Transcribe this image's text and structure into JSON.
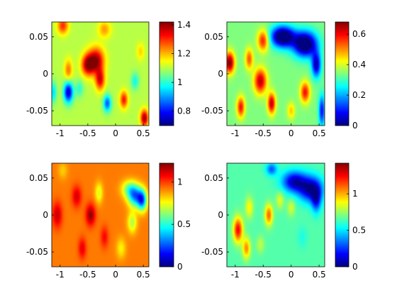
{
  "figure": {
    "background": "#ffffff"
  },
  "chart_data": [
    {
      "type": "heatmap",
      "colormap": "jet",
      "x_ticks": [
        "-1",
        "-0.5",
        "0",
        "0.5"
      ],
      "x_tick_values": [
        -1,
        -0.5,
        0,
        0.5
      ],
      "xlim": [
        -1.15,
        0.6
      ],
      "y_ticks": [
        "0.05",
        "0",
        "-0.05"
      ],
      "y_tick_values": [
        0.05,
        0,
        -0.05
      ],
      "ylim": [
        -0.07,
        0.07
      ],
      "colorbar_ticks": [
        "1.4",
        "1.2",
        "1",
        "0.8"
      ],
      "colorbar_tick_values": [
        1.4,
        1.2,
        1.0,
        0.8
      ],
      "clim": [
        0.7,
        1.42
      ],
      "base": 1.1,
      "blobs": [
        {
          "x": -0.35,
          "y": 0.018,
          "sx": 0.1,
          "sy": 0.012,
          "v": 0.3
        },
        {
          "x": -0.5,
          "y": 0.012,
          "sx": 0.08,
          "sy": 0.01,
          "v": 0.28
        },
        {
          "x": -0.28,
          "y": -0.008,
          "sx": 0.06,
          "sy": 0.01,
          "v": 0.25
        },
        {
          "x": -0.95,
          "y": 0.065,
          "sx": 0.07,
          "sy": 0.008,
          "v": 0.2
        },
        {
          "x": 0.52,
          "y": -0.06,
          "sx": 0.05,
          "sy": 0.008,
          "v": 0.3
        },
        {
          "x": 0.15,
          "y": -0.035,
          "sx": 0.05,
          "sy": 0.008,
          "v": 0.22
        },
        {
          "x": -0.85,
          "y": 0.005,
          "sx": 0.05,
          "sy": 0.01,
          "v": 0.15
        },
        {
          "x": -0.2,
          "y": 0.06,
          "sx": 0.08,
          "sy": 0.008,
          "v": 0.12
        },
        {
          "x": -0.85,
          "y": -0.025,
          "sx": 0.06,
          "sy": 0.01,
          "v": -0.35
        },
        {
          "x": -0.15,
          "y": -0.04,
          "sx": 0.05,
          "sy": 0.008,
          "v": -0.25
        },
        {
          "x": 0.35,
          "y": -0.01,
          "sx": 0.05,
          "sy": 0.008,
          "v": -0.12
        },
        {
          "x": -1.12,
          "y": -0.025,
          "sx": 0.04,
          "sy": 0.01,
          "v": -0.15
        },
        {
          "x": -0.65,
          "y": -0.02,
          "sx": 0.05,
          "sy": 0.008,
          "v": -0.1
        },
        {
          "x": 0.45,
          "y": 0.03,
          "sx": 0.05,
          "sy": 0.008,
          "v": 0.08
        }
      ]
    },
    {
      "type": "heatmap",
      "colormap": "jet",
      "x_ticks": [
        "-1",
        "-0.5",
        "0",
        "0.5"
      ],
      "x_tick_values": [
        -1,
        -0.5,
        0,
        0.5
      ],
      "xlim": [
        -1.15,
        0.6
      ],
      "y_ticks": [
        "0.05",
        "0",
        "-0.05"
      ],
      "y_tick_values": [
        0.05,
        0,
        -0.05
      ],
      "ylim": [
        -0.07,
        0.07
      ],
      "colorbar_ticks": [
        "0.6",
        "0.4",
        "0.2",
        "0"
      ],
      "colorbar_tick_values": [
        0.6,
        0.4,
        0.2,
        0
      ],
      "clim": [
        0,
        0.68
      ],
      "base": 0.34,
      "blobs": [
        {
          "x": -0.15,
          "y": 0.05,
          "sx": 0.15,
          "sy": 0.01,
          "v": -0.42
        },
        {
          "x": 0.25,
          "y": 0.04,
          "sx": 0.15,
          "sy": 0.012,
          "v": -0.42
        },
        {
          "x": 0.45,
          "y": 0.012,
          "sx": 0.06,
          "sy": 0.012,
          "v": -0.3
        },
        {
          "x": 0.55,
          "y": -0.05,
          "sx": 0.04,
          "sy": 0.015,
          "v": -0.25
        },
        {
          "x": -1.1,
          "y": 0.015,
          "sx": 0.06,
          "sy": 0.01,
          "v": 0.35
        },
        {
          "x": -0.55,
          "y": -0.01,
          "sx": 0.08,
          "sy": 0.012,
          "v": 0.3
        },
        {
          "x": -0.5,
          "y": 0.045,
          "sx": 0.07,
          "sy": 0.01,
          "v": 0.25
        },
        {
          "x": -0.35,
          "y": -0.04,
          "sx": 0.05,
          "sy": 0.01,
          "v": 0.3
        },
        {
          "x": 0.25,
          "y": -0.025,
          "sx": 0.06,
          "sy": 0.01,
          "v": 0.25
        },
        {
          "x": -0.9,
          "y": -0.045,
          "sx": 0.05,
          "sy": 0.01,
          "v": 0.25
        },
        {
          "x": -0.75,
          "y": 0.02,
          "sx": 0.05,
          "sy": 0.01,
          "v": 0.2
        },
        {
          "x": 0.0,
          "y": -0.05,
          "sx": 0.05,
          "sy": 0.008,
          "v": 0.12
        }
      ]
    },
    {
      "type": "heatmap",
      "colormap": "jet",
      "x_ticks": [
        "-1",
        "-0.5",
        "0",
        "0.5"
      ],
      "x_tick_values": [
        -1,
        -0.5,
        0,
        0.5
      ],
      "xlim": [
        -1.15,
        0.6
      ],
      "y_ticks": [
        "0.05",
        "0",
        "-0.05"
      ],
      "y_tick_values": [
        0.05,
        0,
        -0.05
      ],
      "ylim": [
        -0.07,
        0.07
      ],
      "colorbar_ticks": [
        "1",
        "0.5",
        "0"
      ],
      "colorbar_tick_values": [
        1,
        0.5,
        0
      ],
      "clim": [
        0,
        1.22
      ],
      "base": 0.92,
      "blobs": [
        {
          "x": 0.35,
          "y": 0.025,
          "sx": 0.09,
          "sy": 0.01,
          "v": -0.55
        },
        {
          "x": 0.48,
          "y": 0.02,
          "sx": 0.06,
          "sy": 0.01,
          "v": -0.6
        },
        {
          "x": 0.25,
          "y": 0.035,
          "sx": 0.1,
          "sy": 0.008,
          "v": -0.3
        },
        {
          "x": -0.45,
          "y": 0.0,
          "sx": 0.06,
          "sy": 0.01,
          "v": 0.28
        },
        {
          "x": -0.7,
          "y": 0.025,
          "sx": 0.06,
          "sy": 0.01,
          "v": 0.2
        },
        {
          "x": -1.05,
          "y": 0.0,
          "sx": 0.06,
          "sy": 0.012,
          "v": 0.22
        },
        {
          "x": -0.2,
          "y": -0.03,
          "sx": 0.05,
          "sy": 0.01,
          "v": 0.15
        },
        {
          "x": 0.3,
          "y": -0.01,
          "sx": 0.06,
          "sy": 0.01,
          "v": -0.25
        },
        {
          "x": -0.3,
          "y": 0.03,
          "sx": 0.05,
          "sy": 0.01,
          "v": -0.2
        },
        {
          "x": -0.6,
          "y": -0.045,
          "sx": 0.05,
          "sy": 0.01,
          "v": 0.18
        },
        {
          "x": 0.1,
          "y": -0.045,
          "sx": 0.06,
          "sy": 0.01,
          "v": -0.15
        },
        {
          "x": -0.95,
          "y": 0.06,
          "sx": 0.06,
          "sy": 0.008,
          "v": -0.1
        }
      ]
    },
    {
      "type": "heatmap",
      "colormap": "jet",
      "x_ticks": [
        "-1",
        "-0.5",
        "0",
        "0.5"
      ],
      "x_tick_values": [
        -1,
        -0.5,
        0,
        0.5
      ],
      "xlim": [
        -1.15,
        0.6
      ],
      "y_ticks": [
        "0.05",
        "0",
        "-0.05"
      ],
      "y_tick_values": [
        0.05,
        0,
        -0.05
      ],
      "ylim": [
        -0.07,
        0.07
      ],
      "colorbar_ticks": [
        "1",
        "0.5",
        "0"
      ],
      "colorbar_tick_values": [
        1,
        0.5,
        0
      ],
      "clim": [
        0,
        1.42
      ],
      "base": 0.65,
      "blobs": [
        {
          "x": 0.05,
          "y": 0.045,
          "sx": 0.15,
          "sy": 0.01,
          "v": -0.55
        },
        {
          "x": 0.35,
          "y": 0.035,
          "sx": 0.15,
          "sy": 0.012,
          "v": -0.6
        },
        {
          "x": 0.45,
          "y": 0.02,
          "sx": 0.06,
          "sy": 0.012,
          "v": -0.4
        },
        {
          "x": -0.35,
          "y": 0.062,
          "sx": 0.07,
          "sy": 0.006,
          "v": -0.35
        },
        {
          "x": -0.95,
          "y": -0.02,
          "sx": 0.06,
          "sy": 0.012,
          "v": 0.6
        },
        {
          "x": -0.8,
          "y": -0.045,
          "sx": 0.05,
          "sy": 0.01,
          "v": 0.4
        },
        {
          "x": -0.4,
          "y": 0.0,
          "sx": 0.05,
          "sy": 0.01,
          "v": 0.45
        },
        {
          "x": -0.75,
          "y": 0.01,
          "sx": 0.05,
          "sy": 0.01,
          "v": 0.25
        },
        {
          "x": -0.2,
          "y": 0.02,
          "sx": 0.05,
          "sy": 0.008,
          "v": 0.2
        },
        {
          "x": 0.0,
          "y": 0.01,
          "sx": 0.05,
          "sy": 0.008,
          "v": 0.18
        },
        {
          "x": -0.55,
          "y": -0.04,
          "sx": 0.05,
          "sy": 0.008,
          "v": 0.15
        },
        {
          "x": 0.2,
          "y": -0.03,
          "sx": 0.06,
          "sy": 0.01,
          "v": -0.08
        }
      ]
    }
  ]
}
